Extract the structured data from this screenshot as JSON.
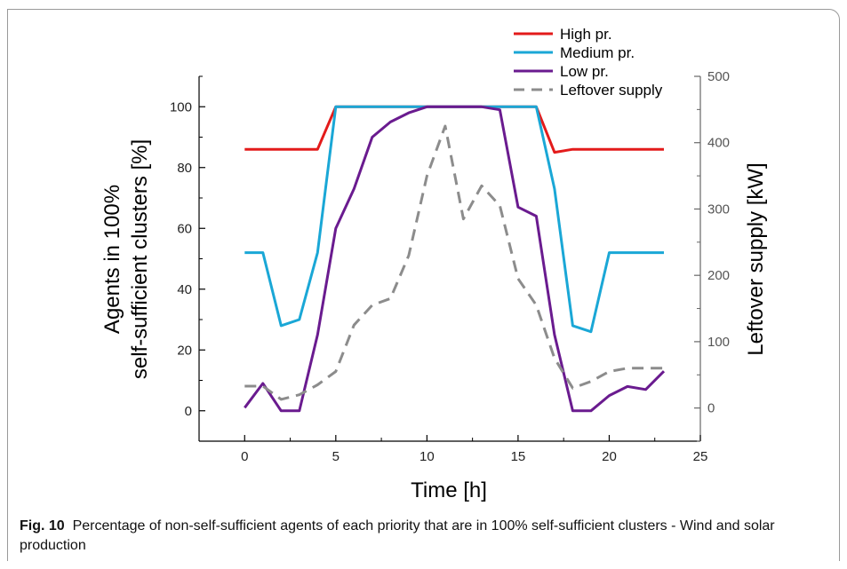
{
  "chart_data": {
    "type": "line",
    "xlabel": "Time [h]",
    "ylabel_left": [
      "Agents in 100%",
      "self-sufficient clusters [%]"
    ],
    "ylabel_right": "Leftover supply [kW]",
    "xlim": [
      -2.5,
      25
    ],
    "ylim_left": [
      -10,
      110
    ],
    "ylim_right": [
      -50,
      500
    ],
    "x_ticks": [
      0,
      5,
      10,
      15,
      20,
      25
    ],
    "y_ticks_left": [
      0,
      20,
      40,
      60,
      80,
      100
    ],
    "y_ticks_right": [
      0,
      100,
      200,
      300,
      400,
      500
    ],
    "legend_position": "top-right",
    "x": [
      0,
      1,
      2,
      3,
      4,
      5,
      6,
      7,
      8,
      9,
      10,
      11,
      12,
      13,
      14,
      15,
      16,
      17,
      18,
      19,
      20,
      21,
      22,
      23
    ],
    "series": [
      {
        "name": "High pr.",
        "axis": "left",
        "color": "#e31b1b",
        "dash": false,
        "values": [
          86,
          86,
          86,
          86,
          86,
          100,
          100,
          100,
          100,
          100,
          100,
          100,
          100,
          100,
          100,
          100,
          100,
          85,
          86,
          86,
          86,
          86,
          86,
          86
        ]
      },
      {
        "name": "Medium pr.",
        "axis": "left",
        "color": "#1aa7d6",
        "dash": false,
        "values": [
          52,
          52,
          28,
          30,
          52,
          100,
          100,
          100,
          100,
          100,
          100,
          100,
          100,
          100,
          100,
          100,
          100,
          73,
          28,
          26,
          52,
          52,
          52,
          52
        ]
      },
      {
        "name": "Low pr.",
        "axis": "left",
        "color": "#6a1b8f",
        "dash": false,
        "values": [
          1,
          9,
          0,
          0,
          25,
          60,
          73,
          90,
          95,
          98,
          100,
          100,
          100,
          100,
          99,
          67,
          64,
          25,
          0,
          0,
          5,
          8,
          7,
          13
        ]
      },
      {
        "name": "Leftover supply",
        "axis": "right",
        "color": "#8c8c8c",
        "dash": true,
        "values": [
          33,
          33,
          13,
          20,
          35,
          55,
          125,
          155,
          165,
          230,
          350,
          425,
          285,
          335,
          305,
          195,
          155,
          75,
          30,
          40,
          55,
          60,
          60,
          60
        ]
      }
    ]
  },
  "caption": {
    "label": "Fig. 10",
    "text": "Percentage of non-self-sufficient agents of each priority that are in 100% self-sufficient clusters - Wind and solar production"
  }
}
